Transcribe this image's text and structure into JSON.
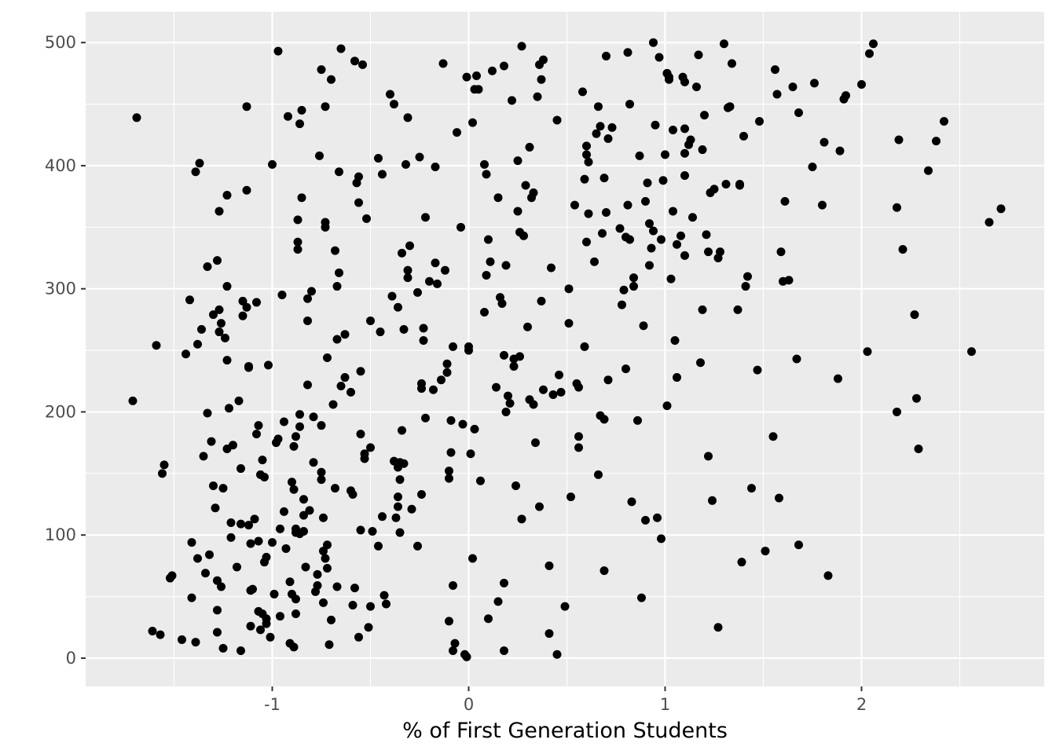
{
  "chart_data": {
    "type": "scatter",
    "title": "",
    "xlabel": "% of First Generation Students",
    "ylabel": "",
    "xlim": [
      -1.95,
      2.93
    ],
    "ylim": [
      -23,
      525
    ],
    "x_ticks": [
      -1,
      0,
      1,
      2
    ],
    "x_tick_labels": [
      "-1",
      "0",
      "1",
      "2"
    ],
    "y_ticks": [
      0,
      100,
      200,
      300,
      400,
      500
    ],
    "y_tick_labels": [
      "0",
      "100",
      "200",
      "300",
      "400",
      "500"
    ],
    "grid": true,
    "legend": "none",
    "colors": {
      "panel": "#ebebeb",
      "grid": "#ffffff",
      "point": "#000000"
    },
    "x": [
      -1.71,
      -1.69,
      -1.61,
      -1.59,
      -1.57,
      -1.56,
      -1.55,
      -1.52,
      -1.51,
      -1.46,
      -1.44,
      -1.42,
      -1.41,
      -1.41,
      -1.39,
      -1.39,
      -1.38,
      -1.38,
      -1.37,
      -1.36,
      -1.35,
      -1.34,
      -1.33,
      -1.33,
      -1.32,
      -1.31,
      -1.3,
      -1.3,
      -1.29,
      -1.28,
      -1.28,
      -1.28,
      -1.28,
      -1.27,
      -1.27,
      -1.27,
      -1.26,
      -1.26,
      -1.25,
      -1.25,
      -1.24,
      -1.23,
      -1.23,
      -1.23,
      -1.23,
      -1.22,
      -1.21,
      -1.21,
      -1.2,
      -1.18,
      -1.17,
      -1.16,
      -1.16,
      -1.16,
      -1.15,
      -1.15,
      -1.13,
      -1.13,
      -1.13,
      -1.12,
      -1.12,
      -1.12,
      -1.11,
      -1.11,
      -1.11,
      -1.1,
      -1.09,
      -1.08,
      -1.08,
      -1.07,
      -1.07,
      -1.07,
      -1.06,
      -1.06,
      -1.05,
      -1.05,
      -1.04,
      -1.04,
      -1.03,
      -1.03,
      -1.03,
      -1.02,
      -1.01,
      -1.0,
      -1.0,
      -0.99,
      -0.98,
      -0.97,
      -0.97,
      -0.96,
      -0.96,
      -0.95,
      -0.94,
      -0.94,
      -0.93,
      -0.92,
      -0.91,
      -0.91,
      -0.9,
      -0.9,
      -0.89,
      -0.89,
      -0.89,
      -0.88,
      -0.88,
      -0.88,
      -0.88,
      -0.88,
      -0.87,
      -0.87,
      -0.87,
      -0.86,
      -0.86,
      -0.86,
      -0.86,
      -0.85,
      -0.85,
      -0.84,
      -0.84,
      -0.84,
      -0.83,
      -0.82,
      -0.82,
      -0.82,
      -0.81,
      -0.8,
      -0.79,
      -0.79,
      -0.78,
      -0.77,
      -0.77,
      -0.76,
      -0.75,
      -0.75,
      -0.75,
      -0.75,
      -0.74,
      -0.74,
      -0.74,
      -0.73,
      -0.73,
      -0.73,
      -0.73,
      -0.72,
      -0.72,
      -0.72,
      -0.71,
      -0.7,
      -0.7,
      -0.69,
      -0.68,
      -0.68,
      -0.67,
      -0.67,
      -0.67,
      -0.66,
      -0.66,
      -0.65,
      -0.65,
      -0.63,
      -0.63,
      -0.6,
      -0.6,
      -0.59,
      -0.59,
      -0.58,
      -0.58,
      -0.57,
      -0.56,
      -0.56,
      -0.56,
      -0.55,
      -0.55,
      -0.55,
      -0.54,
      -0.53,
      -0.53,
      -0.52,
      -0.51,
      -0.5,
      -0.5,
      -0.5,
      -0.49,
      -0.46,
      -0.46,
      -0.45,
      -0.44,
      -0.44,
      -0.43,
      -0.42,
      -0.4,
      -0.39,
      -0.38,
      -0.38,
      -0.37,
      -0.36,
      -0.36,
      -0.36,
      -0.36,
      -0.35,
      -0.35,
      -0.35,
      -0.34,
      -0.34,
      -0.33,
      -0.33,
      -0.32,
      -0.31,
      -0.31,
      -0.31,
      -0.3,
      -0.29,
      -0.26,
      -0.26,
      -0.25,
      -0.24,
      -0.24,
      -0.24,
      -0.23,
      -0.23,
      -0.22,
      -0.22,
      -0.2,
      -0.18,
      -0.17,
      -0.17,
      -0.16,
      -0.14,
      -0.13,
      -0.12,
      -0.11,
      -0.11,
      -0.1,
      -0.1,
      -0.1,
      -0.09,
      -0.09,
      -0.08,
      -0.08,
      -0.08,
      -0.07,
      -0.06,
      -0.04,
      -0.03,
      -0.02,
      -0.01,
      -0.01,
      0.0,
      0.0,
      0.01,
      0.02,
      0.02,
      0.03,
      0.03,
      0.04,
      0.05,
      0.06,
      0.08,
      0.08,
      0.09,
      0.09,
      0.1,
      0.1,
      0.11,
      0.12,
      0.14,
      0.15,
      0.15,
      0.16,
      0.17,
      0.18,
      0.18,
      0.18,
      0.18,
      0.19,
      0.19,
      0.2,
      0.21,
      0.22,
      0.23,
      0.23,
      0.24,
      0.25,
      0.25,
      0.26,
      0.26,
      0.27,
      0.27,
      0.28,
      0.29,
      0.3,
      0.31,
      0.31,
      0.32,
      0.33,
      0.33,
      0.34,
      0.35,
      0.36,
      0.36,
      0.37,
      0.37,
      0.38,
      0.38,
      0.41,
      0.41,
      0.42,
      0.43,
      0.45,
      0.45,
      0.46,
      0.47,
      0.49,
      0.51,
      0.51,
      0.52,
      0.54,
      0.55,
      0.56,
      0.56,
      0.56,
      0.58,
      0.59,
      0.59,
      0.6,
      0.6,
      0.6,
      0.61,
      0.61,
      0.64,
      0.65,
      0.66,
      0.66,
      0.67,
      0.67,
      0.68,
      0.69,
      0.69,
      0.69,
      0.7,
      0.7,
      0.71,
      0.71,
      0.73,
      0.77,
      0.78,
      0.79,
      0.8,
      0.8,
      0.81,
      0.81,
      0.82,
      0.82,
      0.83,
      0.84,
      0.84,
      0.86,
      0.87,
      0.88,
      0.89,
      0.9,
      0.9,
      0.91,
      0.92,
      0.92,
      0.93,
      0.94,
      0.94,
      0.95,
      0.96,
      0.97,
      0.98,
      0.98,
      0.99,
      1.0,
      1.01,
      1.01,
      1.01,
      1.02,
      1.02,
      1.03,
      1.04,
      1.04,
      1.05,
      1.06,
      1.06,
      1.08,
      1.09,
      1.1,
      1.1,
      1.1,
      1.1,
      1.1,
      1.12,
      1.13,
      1.14,
      1.16,
      1.17,
      1.18,
      1.19,
      1.19,
      1.2,
      1.21,
      1.22,
      1.22,
      1.23,
      1.24,
      1.25,
      1.27,
      1.27,
      1.28,
      1.3,
      1.31,
      1.32,
      1.33,
      1.34,
      1.37,
      1.38,
      1.38,
      1.39,
      1.4,
      1.41,
      1.42,
      1.44,
      1.47,
      1.48,
      1.51,
      1.55,
      1.56,
      1.57,
      1.58,
      1.59,
      1.6,
      1.61,
      1.63,
      1.65,
      1.67,
      1.68,
      1.68,
      1.75,
      1.76,
      1.8,
      1.81,
      1.83,
      1.88,
      1.89,
      1.91,
      1.92,
      2.0,
      2.03,
      2.04,
      2.06,
      2.18,
      2.18,
      2.19,
      2.21,
      2.27,
      2.28,
      2.29,
      2.34,
      2.38,
      2.42,
      2.56,
      2.65,
      2.71
    ],
    "y": [
      209,
      439,
      22,
      254,
      19,
      150,
      157,
      65,
      67,
      15,
      247,
      291,
      49,
      94,
      13,
      395,
      81,
      255,
      402,
      267,
      164,
      69,
      318,
      199,
      84,
      176,
      140,
      279,
      122,
      323,
      21,
      63,
      39,
      265,
      363,
      283,
      272,
      58,
      8,
      138,
      260,
      376,
      302,
      170,
      242,
      203,
      110,
      98,
      173,
      74,
      209,
      154,
      6,
      109,
      290,
      278,
      285,
      380,
      448,
      237,
      236,
      108,
      93,
      55,
      26,
      56,
      113,
      289,
      182,
      38,
      189,
      95,
      23,
      149,
      36,
      161,
      147,
      78,
      28,
      32,
      82,
      238,
      17,
      94,
      401,
      52,
      175,
      493,
      178,
      34,
      105,
      295,
      192,
      119,
      89,
      440,
      62,
      12,
      52,
      143,
      137,
      172,
      9,
      48,
      102,
      36,
      105,
      180,
      332,
      338,
      356,
      101,
      188,
      198,
      434,
      374,
      445,
      116,
      129,
      103,
      74,
      274,
      292,
      222,
      120,
      298,
      196,
      159,
      54,
      68,
      59,
      408,
      478,
      189,
      151,
      145,
      114,
      45,
      87,
      81,
      350,
      448,
      354,
      244,
      92,
      73,
      11,
      470,
      31,
      206,
      331,
      138,
      259,
      302,
      58,
      395,
      313,
      221,
      495,
      228,
      263,
      216,
      136,
      43,
      133,
      485,
      57,
      386,
      370,
      391,
      17,
      233,
      182,
      104,
      482,
      162,
      166,
      357,
      25,
      274,
      171,
      42,
      103,
      91,
      406,
      265,
      393,
      115,
      51,
      44,
      458,
      294,
      450,
      160,
      114,
      155,
      285,
      123,
      131,
      159,
      145,
      102,
      185,
      329,
      267,
      158,
      401,
      439,
      315,
      309,
      335,
      121,
      91,
      297,
      407,
      223,
      133,
      219,
      268,
      258,
      195,
      358,
      306,
      218,
      321,
      399,
      304,
      226,
      483,
      315,
      239,
      232,
      30,
      152,
      146,
      193,
      167,
      59,
      6,
      253,
      12,
      427,
      350,
      190,
      3,
      472,
      1,
      250,
      253,
      166,
      435,
      81,
      186,
      462,
      473,
      462,
      144,
      281,
      401,
      311,
      393,
      32,
      340,
      322,
      477,
      220,
      374,
      46,
      293,
      288,
      61,
      246,
      6,
      481,
      200,
      319,
      213,
      207,
      453,
      237,
      243,
      140,
      363,
      404,
      346,
      245,
      497,
      113,
      343,
      384,
      269,
      415,
      210,
      374,
      378,
      206,
      175,
      456,
      482,
      123,
      290,
      470,
      486,
      218,
      20,
      75,
      317,
      214,
      3,
      437,
      230,
      216,
      42,
      300,
      272,
      131,
      368,
      223,
      220,
      171,
      180,
      460,
      389,
      253,
      338,
      416,
      409,
      403,
      361,
      322,
      426,
      448,
      149,
      197,
      432,
      345,
      390,
      194,
      71,
      489,
      362,
      422,
      226,
      431,
      349,
      287,
      299,
      342,
      235,
      368,
      492,
      450,
      340,
      127,
      302,
      309,
      193,
      408,
      49,
      270,
      112,
      371,
      386,
      353,
      319,
      333,
      500,
      347,
      433,
      114,
      488,
      340,
      97,
      388,
      409,
      205,
      475,
      475,
      472,
      470,
      308,
      429,
      363,
      258,
      336,
      228,
      343,
      472,
      468,
      327,
      392,
      430,
      410,
      417,
      421,
      358,
      464,
      490,
      240,
      413,
      283,
      441,
      344,
      330,
      164,
      378,
      128,
      381,
      25,
      325,
      330,
      499,
      385,
      447,
      448,
      483,
      283,
      385,
      384,
      78,
      424,
      302,
      310,
      138,
      234,
      436,
      87,
      180,
      478,
      458,
      130,
      330,
      306,
      371,
      307,
      464,
      243,
      443,
      92,
      399,
      467,
      368,
      419,
      67,
      227,
      412,
      454,
      457,
      466,
      249,
      491,
      499,
      200,
      366,
      421,
      332,
      279,
      211,
      170,
      396,
      420,
      436,
      249,
      354,
      365
    ],
    "point_color": "#000000"
  }
}
